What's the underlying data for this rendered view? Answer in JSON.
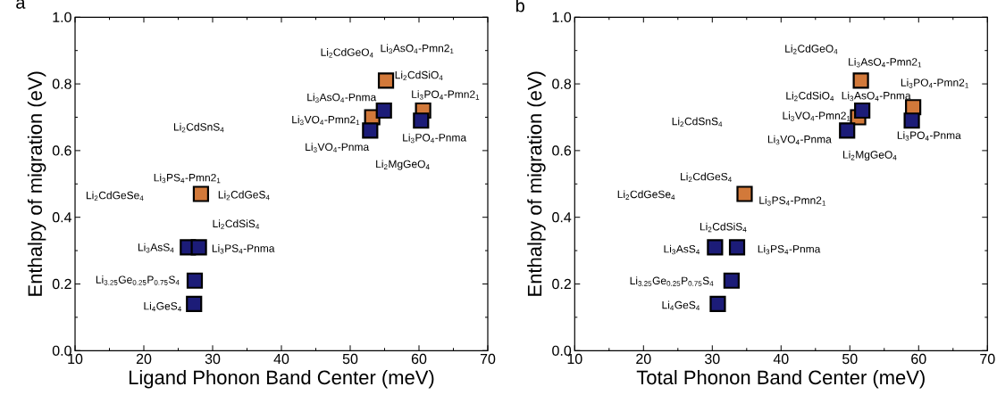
{
  "chart_data": [
    {
      "type": "scatter",
      "title": "a",
      "xlabel": "Ligand Phonon Band Center (meV)",
      "ylabel": "Enthalpy of migration (eV)",
      "marker": "square",
      "xlim": [
        10,
        70
      ],
      "xticks": [
        10,
        20,
        30,
        40,
        50,
        60,
        70
      ],
      "ylim": [
        0,
        1
      ],
      "yticks": [
        {
          "value": 0,
          "label": "0.0"
        },
        {
          "value": 0.2,
          "label": "0.2"
        },
        {
          "value": 0.4,
          "label": "0.4"
        },
        {
          "value": 0.6,
          "label": "0.6"
        },
        {
          "value": 0.8,
          "label": "0.8"
        },
        {
          "value": 1,
          "label": "1.0"
        }
      ],
      "series": [
        {
          "color": "#d2793a",
          "x": [
            55.2,
            60.6,
            53.2,
            28.3
          ],
          "values": [
            0.81,
            0.72,
            0.7,
            0.47
          ]
        },
        {
          "color": "#1c1c78",
          "x": [
            54.9,
            52.9,
            60.3,
            26.4,
            28.0,
            27.4,
            27.3
          ],
          "values": [
            0.72,
            0.66,
            0.69,
            0.31,
            0.31,
            0.21,
            0.14
          ]
        }
      ],
      "annotations": [
        "Li$_{2}$CdGeO$_{4}$",
        {
          "text": "Li$_{3}$AsO$_{4}$-Pmn2$_{1}$",
          "x": 55.2,
          "y": 0.81
        },
        "Li$_{2}$CdSiO$_{4}$",
        {
          "text": "Li$_{3}$AsO$_{4}$-Pnma",
          "x": 54.9,
          "y": 0.72
        },
        {
          "text": "Li$_{3}$PO$_{4}$-Pmn2$_{1}$",
          "x": 60.6,
          "y": 0.72
        },
        {
          "text": "Li$_{3}$VO$_{4}$-Pmn2$_{1}$",
          "x": 53.2,
          "y": 0.7
        },
        "Li$_{2}$CdSnS$_{4}$",
        {
          "text": "Li$_{3}$VO$_{4}$-Pnma",
          "x": 52.9,
          "y": 0.66
        },
        {
          "text": "Li$_{3}$PO$_{4}$-Pnma",
          "x": 60.3,
          "y": 0.69
        },
        "Li$_{2}$MgGeO$_{4}$",
        {
          "text": "Li$_{3}$PS$_{4}$-Pmn2$_{1}$",
          "x": 28.3,
          "y": 0.47
        },
        "Li$_{2}$CdGeSe$_{4}$",
        "Li$_{2}$CdGeS$_{4}$",
        "Li$_{2}$CdSiS$_{4}$",
        {
          "text": "Li$_{3}$AsS$_{4}$",
          "x": 26.4,
          "y": 0.31
        },
        {
          "text": "Li$_{3}$PS$_{4}$-Pnma",
          "x": 28.0,
          "y": 0.31
        },
        {
          "text": "Li$_{3.25}$Ge$_{0.25}$P$_{0.75}$S$_{4}$",
          "x": 27.4,
          "y": 0.21
        },
        {
          "text": "Li$_{4}$GeS$_{4}$",
          "x": 27.3,
          "y": 0.14
        }
      ]
    },
    {
      "type": "scatter",
      "title": "b",
      "xlabel": "Total Phonon Band Center (meV)",
      "ylabel": "Enthalpy of migration (eV)",
      "marker": "square",
      "xlim": [
        10,
        70
      ],
      "xticks": [
        10,
        20,
        30,
        40,
        50,
        60,
        70
      ],
      "ylim": [
        0,
        1
      ],
      "yticks": [
        {
          "value": 0,
          "label": "0.0"
        },
        {
          "value": 0.2,
          "label": "0.2"
        },
        {
          "value": 0.4,
          "label": "0.4"
        },
        {
          "value": 0.6,
          "label": "0.6"
        },
        {
          "value": 0.8,
          "label": "0.8"
        },
        {
          "value": 1,
          "label": "1.0"
        }
      ],
      "series": [
        {
          "color": "#d2793a",
          "x": [
            51.6,
            59.2,
            51.2,
            34.7
          ],
          "values": [
            0.81,
            0.73,
            0.7,
            0.47
          ]
        },
        {
          "color": "#1c1c78",
          "x": [
            51.8,
            49.6,
            59.0,
            30.4,
            33.6,
            32.8,
            30.8
          ],
          "values": [
            0.72,
            0.66,
            0.69,
            0.31,
            0.31,
            0.21,
            0.14
          ]
        }
      ],
      "annotations": [
        "Li$_{2}$CdGeO$_{4}$",
        {
          "text": "Li$_{3}$AsO$_{4}$-Pmn2$_{1}$",
          "x": 51.6,
          "y": 0.81
        },
        {
          "text": "Li$_{3}$PO$_{4}$-Pmn2$_{1}$",
          "x": 59.2,
          "y": 0.73
        },
        "Li$_{2}$CdSiO$_{4}$",
        {
          "text": "Li$_{3}$AsO$_{4}$-Pnma",
          "x": 51.8,
          "y": 0.72
        },
        {
          "text": "Li$_{3}$VO$_{4}$-Pmn2$_{1}$",
          "x": 51.2,
          "y": 0.7
        },
        "Li$_{2}$CdSnS$_{4}$",
        {
          "text": "Li$_{3}$VO$_{4}$-Pnma",
          "x": 49.6,
          "y": 0.66
        },
        {
          "text": "Li$_{3}$PO$_{4}$-Pnma",
          "x": 59.0,
          "y": 0.69
        },
        "Li$_{2}$MgGeO$_{4}$",
        "Li$_{2}$CdGeS$_{4}$",
        "Li$_{2}$CdGeSe$_{4}$",
        {
          "text": "Li$_{3}$PS$_{4}$-Pmn2$_{1}$",
          "x": 34.7,
          "y": 0.47
        },
        "Li$_{2}$CdSiS$_{4}$",
        {
          "text": "Li$_{3}$AsS$_{4}$",
          "x": 30.4,
          "y": 0.31
        },
        {
          "text": "Li$_{3}$PS$_{4}$-Pnma",
          "x": 33.6,
          "y": 0.31
        },
        {
          "text": "Li$_{3.25}$Ge$_{0.25}$P$_{0.75}$S$_{4}$",
          "x": 32.8,
          "y": 0.21
        },
        {
          "text": "Li$_{4}$GeS$_{4}$",
          "x": 30.8,
          "y": 0.14
        }
      ]
    }
  ]
}
